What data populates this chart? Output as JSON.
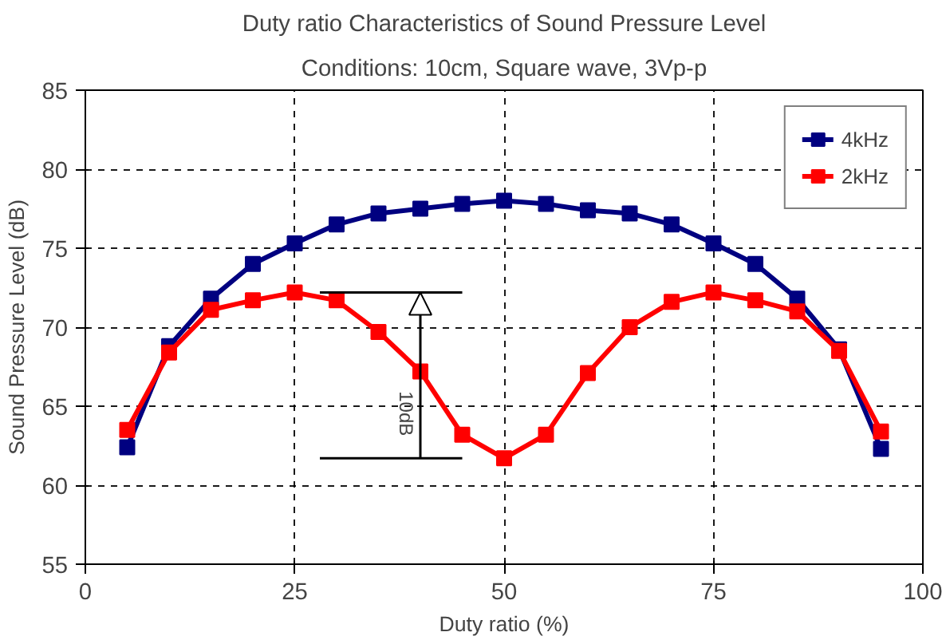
{
  "chart_data": {
    "type": "line",
    "title": "Duty ratio Characteristics of Sound Pressure Level",
    "subtitle": "Conditions: 10cm, Square wave, 3Vp-p",
    "xlabel": "Duty ratio (%)",
    "ylabel": "Sound Pressure Level (dB)",
    "x": [
      5,
      10,
      15,
      20,
      25,
      30,
      35,
      40,
      45,
      50,
      55,
      60,
      65,
      70,
      75,
      80,
      85,
      90,
      95
    ],
    "series": [
      {
        "name": "4kHz",
        "color": "#000080",
        "values": [
          62.4,
          68.8,
          71.8,
          74.0,
          75.3,
          76.5,
          77.2,
          77.5,
          77.8,
          78.0,
          77.8,
          77.4,
          77.2,
          76.5,
          75.3,
          74.0,
          71.8,
          68.6,
          62.3
        ]
      },
      {
        "name": "2kHz",
        "color": "#ff0000",
        "values": [
          63.5,
          68.4,
          71.1,
          71.7,
          72.2,
          71.7,
          69.7,
          67.2,
          63.2,
          61.7,
          63.2,
          67.1,
          70.0,
          71.6,
          72.2,
          71.7,
          71.0,
          68.5,
          63.4
        ]
      }
    ],
    "annotations": [
      {
        "text": "10dB",
        "x": 40,
        "y": 72.2
      }
    ],
    "ref_lines": [
      {
        "axis": "y",
        "value": 72.2,
        "label": null
      },
      {
        "axis": "y",
        "value": 61.7,
        "label": null
      }
    ],
    "xlim": [
      0,
      100
    ],
    "xticks": [
      0,
      25,
      50,
      75,
      100
    ],
    "ylim": [
      55,
      85
    ],
    "yticks": [
      55,
      60,
      65,
      70,
      75,
      80,
      85
    ],
    "grid": true,
    "legend": "top right",
    "marker": "square",
    "line_style": "solid"
  }
}
